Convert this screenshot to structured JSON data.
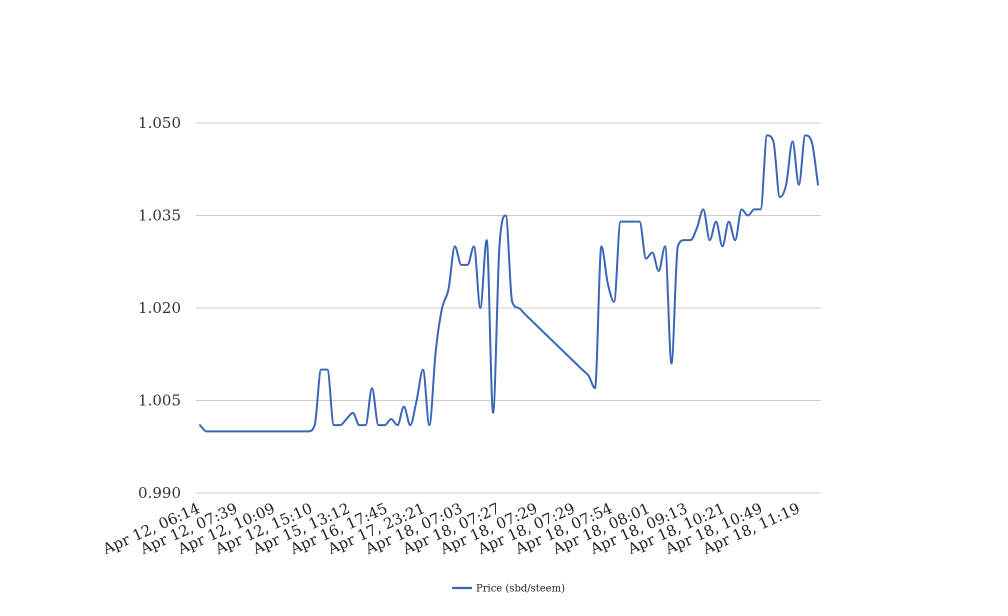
{
  "chart_data": {
    "type": "line",
    "title": "",
    "xlabel": "",
    "ylabel": "",
    "ylim": [
      0.99,
      1.05
    ],
    "yticks": [
      "0.990",
      "1.005",
      "1.020",
      "1.035",
      "1.050"
    ],
    "grid": "horizontal",
    "legend_position": "bottom",
    "series_color": "#3a66b5",
    "grid_color": "#cccccc",
    "x_tick_labels": [
      "Apr 12, 06:14",
      "Apr 12, 07:39",
      "Apr 12, 10:09",
      "Apr 12, 15:10",
      "Apr 15, 13:12",
      "Apr 16, 17:45",
      "Apr 17, 23:21",
      "Apr 18, 07:03",
      "Apr 18, 07:27",
      "Apr 18, 07:29",
      "Apr 18, 07:29",
      "Apr 18, 07:54",
      "Apr 18, 08:01",
      "Apr 18, 09:13",
      "Apr 18, 10:21",
      "Apr 18, 10:49",
      "Apr 18, 11:19"
    ],
    "series": [
      {
        "name": "Price (sbd/steem)",
        "values": [
          1.001,
          1.0,
          1.0,
          1.0,
          1.0,
          1.0,
          1.0,
          1.0,
          1.0,
          1.0,
          1.0,
          1.0,
          1.0,
          1.0,
          1.0,
          1.0,
          1.0,
          1.0,
          1.001,
          1.01,
          1.01,
          1.001,
          1.001,
          1.002,
          1.003,
          1.001,
          1.001,
          1.007,
          1.001,
          1.001,
          1.002,
          1.001,
          1.004,
          1.001,
          1.005,
          1.01,
          1.001,
          1.013,
          1.02,
          1.023,
          1.03,
          1.027,
          1.027,
          1.03,
          1.02,
          1.031,
          1.003,
          1.03,
          1.035,
          1.021,
          1.02,
          1.019,
          1.018,
          1.017,
          1.016,
          1.015,
          1.014,
          1.013,
          1.012,
          1.011,
          1.01,
          1.009,
          1.007,
          1.03,
          1.024,
          1.021,
          1.034,
          1.034,
          1.034,
          1.034,
          1.028,
          1.029,
          1.026,
          1.03,
          1.011,
          1.03,
          1.031,
          1.031,
          1.033,
          1.036,
          1.031,
          1.034,
          1.03,
          1.034,
          1.031,
          1.036,
          1.035,
          1.036,
          1.036,
          1.048,
          1.047,
          1.038,
          1.04,
          1.047,
          1.04,
          1.048,
          1.047,
          1.04
        ]
      }
    ]
  }
}
